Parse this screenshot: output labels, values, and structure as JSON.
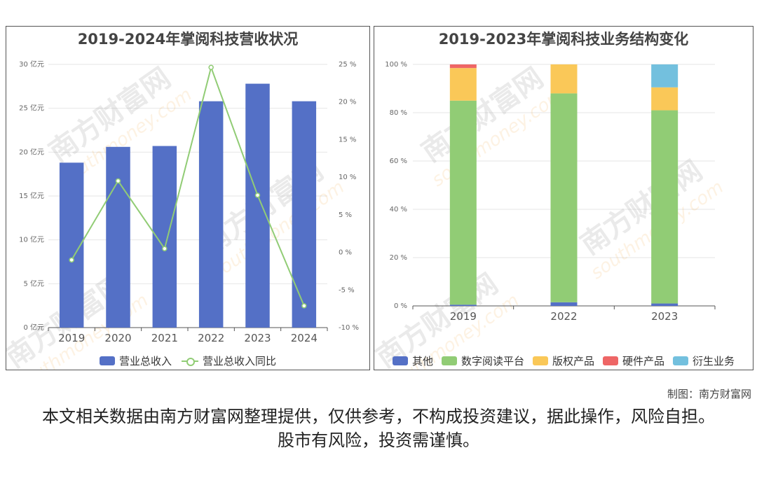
{
  "chart_data": [
    {
      "type": "bar+line",
      "title": "2019-2024年掌阅科技营收状况",
      "categories": [
        "2019",
        "2020",
        "2021",
        "2022",
        "2023",
        "2024"
      ],
      "series": [
        {
          "name": "营业总收入",
          "type": "bar",
          "axis": "left",
          "color": "#5470c6",
          "values": [
            18.8,
            20.6,
            20.7,
            25.8,
            27.8,
            25.8
          ]
        },
        {
          "name": "营业总收入同比",
          "type": "line",
          "axis": "right",
          "color": "#91cc75",
          "values": [
            -1.0,
            9.5,
            0.5,
            24.6,
            7.6,
            -7.1
          ]
        }
      ],
      "left_axis": {
        "ticks": [
          "0 亿元",
          "5 亿元",
          "10 亿元",
          "15 亿元",
          "20 亿元",
          "25 亿元",
          "30 亿元"
        ],
        "ylim": [
          0,
          30
        ]
      },
      "right_axis": {
        "ticks": [
          "-10 %",
          "-5 %",
          "0 %",
          "5 %",
          "10 %",
          "15 %",
          "20 %",
          "25 %"
        ],
        "ylim": [
          -10,
          25
        ]
      },
      "legend_position": "bottom",
      "grid": true
    },
    {
      "type": "stacked-bar",
      "title": "2019-2023年掌阅科技业务结构变化",
      "categories": [
        "2019",
        "2022",
        "2023"
      ],
      "series": [
        {
          "name": "其他",
          "color": "#5470c6",
          "values": [
            0.5,
            1.5,
            1.0
          ]
        },
        {
          "name": "数字阅读平台",
          "color": "#91cc75",
          "values": [
            84.5,
            86.5,
            80.0
          ]
        },
        {
          "name": "版权产品",
          "color": "#fac858",
          "values": [
            13.5,
            12.0,
            9.5
          ]
        },
        {
          "name": "硬件产品",
          "color": "#ee6666",
          "values": [
            1.5,
            0,
            0
          ]
        },
        {
          "name": "衍生业务",
          "color": "#73c0de",
          "values": [
            0,
            0,
            9.5
          ]
        }
      ],
      "y_axis": {
        "ticks": [
          "0 %",
          "20 %",
          "40 %",
          "60 %",
          "80 %",
          "100 %"
        ],
        "ylim": [
          0,
          100
        ]
      },
      "legend_position": "bottom",
      "grid": true
    }
  ],
  "credit": "制图：南方财富网",
  "disclaimer": "本文相关数据由南方财富网整理提供，仅供参考，不构成投资建议，据此操作，风险自担。股市有风险，投资需谨慎。",
  "watermark": {
    "text": "南方财富网",
    "subtext": "southmoney.com"
  }
}
